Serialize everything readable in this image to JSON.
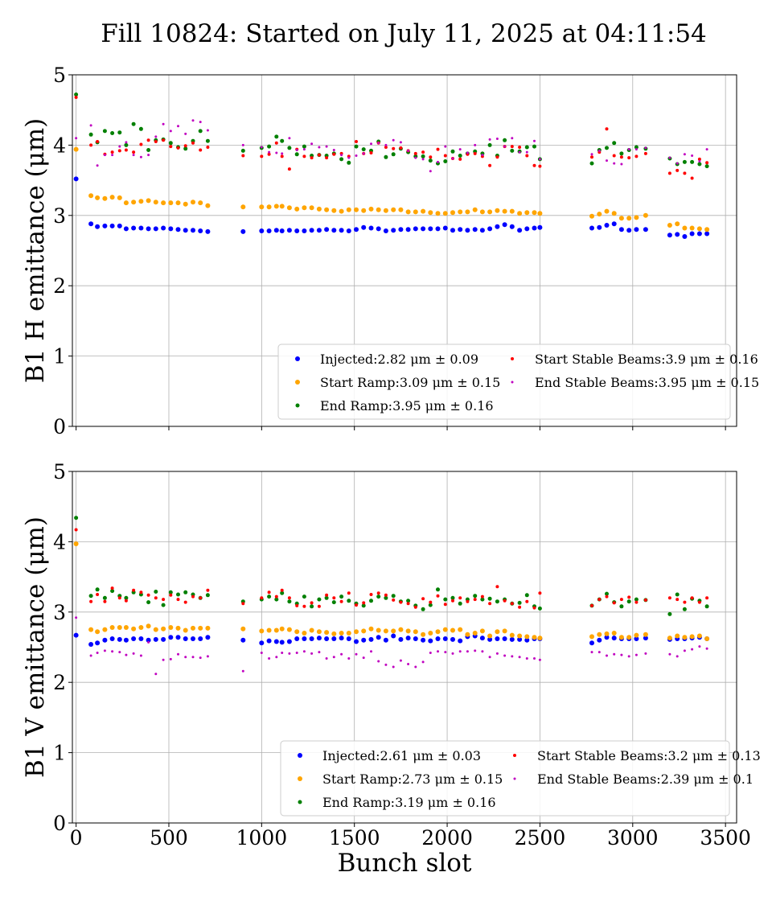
{
  "figure": {
    "title": "Fill 10824: Started on July 11, 2025 at 04:11:54",
    "xlabel": "Bunch slot"
  },
  "colors": {
    "injected": "#0000ff",
    "start_ramp": "#ffa500",
    "end_ramp": "#008000",
    "start_stable": "#ff0000",
    "end_stable": "#c000c0"
  },
  "chart_data": [
    {
      "type": "scatter",
      "ylabel": "B1 H emittance (μm)",
      "xlabel": "",
      "xlim": [
        -20,
        3560
      ],
      "ylim": [
        0,
        5
      ],
      "x_ticks": [
        0,
        500,
        1000,
        1500,
        2000,
        2500,
        3000,
        3500
      ],
      "y_ticks": [
        0,
        1,
        2,
        3,
        4,
        5
      ],
      "grid": true,
      "legend_position": "lower-right",
      "legend": [
        "Injected:2.82 μm ± 0.09",
        "Start Ramp:3.09 μm ± 0.15",
        "End Ramp:3.95 μm ± 0.16",
        "Start Stable Beams:3.9 μm ± 0.16",
        "End Stable Beams:3.95 μm ± 0.15"
      ],
      "x": [
        0,
        80,
        115,
        155,
        195,
        235,
        270,
        310,
        350,
        390,
        430,
        470,
        510,
        550,
        590,
        630,
        670,
        710,
        900,
        1000,
        1040,
        1080,
        1110,
        1150,
        1190,
        1230,
        1270,
        1310,
        1350,
        1390,
        1430,
        1470,
        1510,
        1550,
        1590,
        1630,
        1670,
        1710,
        1750,
        1790,
        1830,
        1870,
        1910,
        1950,
        1990,
        2030,
        2070,
        2110,
        2150,
        2190,
        2230,
        2270,
        2310,
        2350,
        2390,
        2430,
        2470,
        2500,
        2780,
        2820,
        2860,
        2900,
        2940,
        2980,
        3020,
        3070,
        3200,
        3240,
        3280,
        3320,
        3360,
        3400
      ],
      "series": [
        {
          "name": "Injected",
          "color_key": "injected",
          "size": 6,
          "values": [
            3.52,
            2.88,
            2.84,
            2.85,
            2.85,
            2.85,
            2.81,
            2.82,
            2.82,
            2.81,
            2.81,
            2.82,
            2.81,
            2.8,
            2.79,
            2.79,
            2.78,
            2.77,
            2.77,
            2.78,
            2.78,
            2.79,
            2.78,
            2.79,
            2.78,
            2.78,
            2.79,
            2.79,
            2.8,
            2.79,
            2.79,
            2.78,
            2.8,
            2.83,
            2.82,
            2.81,
            2.78,
            2.79,
            2.8,
            2.8,
            2.81,
            2.81,
            2.81,
            2.81,
            2.82,
            2.79,
            2.8,
            2.79,
            2.8,
            2.79,
            2.81,
            2.84,
            2.87,
            2.84,
            2.79,
            2.81,
            2.82,
            2.83,
            2.82,
            2.83,
            2.86,
            2.88,
            2.8,
            2.79,
            2.8,
            2.8,
            2.72,
            2.73,
            2.7,
            2.74,
            2.74,
            2.74
          ]
        },
        {
          "name": "Start Ramp",
          "color_key": "start_ramp",
          "size": 6,
          "values": [
            3.94,
            3.28,
            3.25,
            3.24,
            3.26,
            3.25,
            3.18,
            3.19,
            3.2,
            3.21,
            3.19,
            3.18,
            3.18,
            3.18,
            3.16,
            3.19,
            3.18,
            3.14,
            3.12,
            3.12,
            3.12,
            3.13,
            3.13,
            3.11,
            3.09,
            3.11,
            3.11,
            3.09,
            3.08,
            3.07,
            3.06,
            3.08,
            3.08,
            3.07,
            3.09,
            3.08,
            3.07,
            3.08,
            3.08,
            3.05,
            3.05,
            3.06,
            3.04,
            3.03,
            3.03,
            3.04,
            3.05,
            3.05,
            3.08,
            3.05,
            3.05,
            3.07,
            3.06,
            3.06,
            3.03,
            3.04,
            3.04,
            3.03,
            2.99,
            3.02,
            3.06,
            3.03,
            2.96,
            2.96,
            2.97,
            3.0,
            2.86,
            2.88,
            2.82,
            2.82,
            2.81,
            2.8
          ]
        },
        {
          "name": "End Ramp",
          "color_key": "end_ramp",
          "size": 5,
          "values": [
            4.72,
            4.15,
            4.04,
            4.2,
            4.17,
            4.18,
            4.0,
            4.3,
            4.23,
            3.93,
            4.07,
            4.08,
            4.03,
            3.97,
            3.95,
            4.06,
            4.2,
            4.06,
            3.92,
            3.96,
            3.98,
            4.12,
            4.06,
            3.96,
            3.87,
            3.98,
            3.85,
            3.86,
            3.85,
            3.88,
            3.8,
            3.75,
            3.98,
            3.94,
            3.92,
            4.05,
            3.83,
            3.87,
            3.95,
            3.9,
            3.84,
            3.84,
            3.78,
            3.74,
            3.77,
            3.91,
            3.85,
            3.88,
            3.91,
            3.88,
            4.0,
            3.85,
            4.07,
            3.92,
            3.91,
            3.97,
            3.98,
            3.8,
            3.74,
            3.93,
            3.96,
            4.03,
            3.88,
            3.93,
            3.97,
            3.95,
            3.81,
            3.73,
            3.76,
            3.76,
            3.73,
            3.7
          ]
        },
        {
          "name": "Start Stable Beams",
          "color_key": "start_stable",
          "size": 4,
          "values": [
            4.68,
            4.0,
            4.05,
            3.87,
            3.9,
            3.92,
            3.93,
            3.9,
            4.01,
            4.07,
            4.05,
            4.07,
            3.98,
            3.96,
            3.99,
            4.03,
            3.93,
            3.97,
            3.85,
            3.84,
            3.87,
            4.03,
            3.84,
            3.66,
            3.94,
            3.84,
            3.82,
            3.86,
            3.82,
            3.87,
            3.88,
            3.84,
            4.05,
            3.88,
            3.89,
            4.03,
            3.97,
            3.95,
            3.96,
            3.92,
            3.88,
            3.9,
            3.83,
            3.94,
            3.85,
            3.81,
            3.8,
            3.87,
            3.88,
            3.84,
            3.71,
            3.83,
            3.98,
            3.98,
            3.97,
            3.85,
            3.71,
            3.7,
            3.83,
            3.9,
            4.23,
            3.85,
            3.83,
            3.82,
            3.84,
            3.88,
            3.6,
            3.64,
            3.6,
            3.53,
            3.8,
            3.75
          ]
        },
        {
          "name": "End Stable Beams",
          "color_key": "end_stable",
          "size": 3,
          "values": [
            4.1,
            4.28,
            3.71,
            3.86,
            3.86,
            3.98,
            4.04,
            3.86,
            3.83,
            3.86,
            4.12,
            4.3,
            4.2,
            4.27,
            4.16,
            4.35,
            4.33,
            4.21,
            4.0,
            3.97,
            3.9,
            3.89,
            3.88,
            4.1,
            3.93,
            3.94,
            4.02,
            3.97,
            3.98,
            3.93,
            3.86,
            3.82,
            3.85,
            3.88,
            4.02,
            4.03,
            4.0,
            4.07,
            4.04,
            3.92,
            3.82,
            3.8,
            3.63,
            3.76,
            3.98,
            3.81,
            3.94,
            3.89,
            4.0,
            3.86,
            4.08,
            4.09,
            3.98,
            4.1,
            3.9,
            3.9,
            4.06,
            3.8,
            3.87,
            3.92,
            3.78,
            3.74,
            3.73,
            3.94,
            3.94,
            3.96,
            3.82,
            3.74,
            3.87,
            3.85,
            3.77,
            3.94
          ]
        }
      ]
    },
    {
      "type": "scatter",
      "ylabel": "B1 V emittance (μm)",
      "xlabel": "Bunch slot",
      "xlim": [
        -20,
        3560
      ],
      "ylim": [
        0,
        5
      ],
      "x_ticks": [
        0,
        500,
        1000,
        1500,
        2000,
        2500,
        3000,
        3500
      ],
      "y_ticks": [
        0,
        1,
        2,
        3,
        4,
        5
      ],
      "grid": true,
      "legend_position": "lower-right",
      "legend": [
        "Injected:2.61 μm ± 0.03",
        "Start Ramp:2.73 μm ± 0.15",
        "End Ramp:3.19 μm ± 0.16",
        "Start Stable Beams:3.2 μm ± 0.13",
        "End Stable Beams:2.39 μm ± 0.1"
      ],
      "x": [
        0,
        80,
        115,
        155,
        195,
        235,
        270,
        310,
        350,
        390,
        430,
        470,
        510,
        550,
        590,
        630,
        670,
        710,
        900,
        1000,
        1040,
        1080,
        1110,
        1150,
        1190,
        1230,
        1270,
        1310,
        1350,
        1390,
        1430,
        1470,
        1510,
        1550,
        1590,
        1630,
        1670,
        1710,
        1750,
        1790,
        1830,
        1870,
        1910,
        1950,
        1990,
        2030,
        2070,
        2110,
        2150,
        2190,
        2230,
        2270,
        2310,
        2350,
        2390,
        2430,
        2470,
        2500,
        2780,
        2820,
        2860,
        2900,
        2940,
        2980,
        3020,
        3070,
        3200,
        3240,
        3280,
        3320,
        3360,
        3400
      ],
      "series": [
        {
          "name": "Injected",
          "color_key": "injected",
          "size": 6,
          "values": [
            2.67,
            2.54,
            2.56,
            2.6,
            2.62,
            2.61,
            2.6,
            2.62,
            2.62,
            2.6,
            2.61,
            2.61,
            2.64,
            2.64,
            2.62,
            2.62,
            2.62,
            2.64,
            2.6,
            2.56,
            2.59,
            2.58,
            2.57,
            2.58,
            2.62,
            2.62,
            2.62,
            2.63,
            2.62,
            2.62,
            2.63,
            2.62,
            2.58,
            2.6,
            2.61,
            2.64,
            2.6,
            2.66,
            2.61,
            2.63,
            2.62,
            2.6,
            2.59,
            2.62,
            2.62,
            2.61,
            2.59,
            2.65,
            2.66,
            2.63,
            2.61,
            2.62,
            2.62,
            2.61,
            2.61,
            2.6,
            2.62,
            2.62,
            2.56,
            2.6,
            2.64,
            2.63,
            2.62,
            2.62,
            2.62,
            2.63,
            2.61,
            2.62,
            2.62,
            2.63,
            2.64,
            2.62
          ]
        },
        {
          "name": "Start Ramp",
          "color_key": "start_ramp",
          "size": 6,
          "values": [
            3.97,
            2.75,
            2.72,
            2.75,
            2.78,
            2.78,
            2.78,
            2.76,
            2.78,
            2.8,
            2.75,
            2.76,
            2.78,
            2.77,
            2.74,
            2.77,
            2.77,
            2.77,
            2.76,
            2.73,
            2.74,
            2.74,
            2.76,
            2.75,
            2.72,
            2.7,
            2.74,
            2.72,
            2.71,
            2.69,
            2.7,
            2.7,
            2.72,
            2.73,
            2.76,
            2.74,
            2.73,
            2.73,
            2.75,
            2.73,
            2.72,
            2.68,
            2.7,
            2.72,
            2.75,
            2.74,
            2.75,
            2.68,
            2.7,
            2.73,
            2.66,
            2.72,
            2.73,
            2.67,
            2.66,
            2.65,
            2.64,
            2.63,
            2.65,
            2.68,
            2.69,
            2.7,
            2.64,
            2.64,
            2.67,
            2.68,
            2.63,
            2.66,
            2.64,
            2.65,
            2.66,
            2.62
          ]
        },
        {
          "name": "End Ramp",
          "color_key": "end_ramp",
          "size": 5,
          "values": [
            4.34,
            3.23,
            3.32,
            3.2,
            3.3,
            3.23,
            3.2,
            3.28,
            3.25,
            3.14,
            3.29,
            3.1,
            3.28,
            3.25,
            3.28,
            3.25,
            3.2,
            3.24,
            3.15,
            3.18,
            3.22,
            3.18,
            3.27,
            3.15,
            3.12,
            3.22,
            3.08,
            3.18,
            3.2,
            3.14,
            3.22,
            3.16,
            3.12,
            3.09,
            3.16,
            3.22,
            3.2,
            3.23,
            3.15,
            3.16,
            3.09,
            3.04,
            3.1,
            3.32,
            3.18,
            3.2,
            3.12,
            3.18,
            3.23,
            3.18,
            3.19,
            3.15,
            3.18,
            3.12,
            3.13,
            3.24,
            3.08,
            3.05,
            3.09,
            3.18,
            3.26,
            3.14,
            3.08,
            3.15,
            3.18,
            3.17,
            2.97,
            3.25,
            3.04,
            3.19,
            3.16,
            3.08
          ]
        },
        {
          "name": "Start Stable Beams",
          "color_key": "start_stable",
          "size": 4,
          "values": [
            4.17,
            3.15,
            3.25,
            3.15,
            3.34,
            3.2,
            3.16,
            3.31,
            3.28,
            3.24,
            3.2,
            3.18,
            3.24,
            3.18,
            3.14,
            3.22,
            3.2,
            3.31,
            3.12,
            3.2,
            3.28,
            3.22,
            3.31,
            3.2,
            3.09,
            3.08,
            3.13,
            3.08,
            3.24,
            3.2,
            3.15,
            3.27,
            3.1,
            3.13,
            3.25,
            3.27,
            3.24,
            3.17,
            3.14,
            3.12,
            3.07,
            3.19,
            3.14,
            3.23,
            3.11,
            3.16,
            3.2,
            3.15,
            3.18,
            3.22,
            3.12,
            3.36,
            3.16,
            3.12,
            3.07,
            3.15,
            3.06,
            3.27,
            3.09,
            3.18,
            3.22,
            3.13,
            3.18,
            3.21,
            3.14,
            3.17,
            3.2,
            3.18,
            3.14,
            3.2,
            3.14,
            3.2
          ]
        },
        {
          "name": "End Stable Beams",
          "color_key": "end_stable",
          "size": 3,
          "values": [
            2.92,
            2.38,
            2.42,
            2.45,
            2.44,
            2.43,
            2.39,
            2.41,
            2.38,
            2.57,
            2.12,
            2.32,
            2.33,
            2.4,
            2.36,
            2.36,
            2.35,
            2.37,
            2.16,
            2.42,
            2.34,
            2.36,
            2.42,
            2.41,
            2.42,
            2.44,
            2.41,
            2.43,
            2.34,
            2.36,
            2.4,
            2.34,
            2.4,
            2.35,
            2.44,
            2.3,
            2.25,
            2.22,
            2.31,
            2.26,
            2.22,
            2.29,
            2.42,
            2.44,
            2.43,
            2.41,
            2.44,
            2.44,
            2.45,
            2.44,
            2.36,
            2.41,
            2.38,
            2.37,
            2.36,
            2.34,
            2.34,
            2.32,
            2.43,
            2.43,
            2.38,
            2.4,
            2.39,
            2.37,
            2.39,
            2.41,
            2.4,
            2.37,
            2.45,
            2.47,
            2.51,
            2.48
          ]
        }
      ]
    }
  ]
}
